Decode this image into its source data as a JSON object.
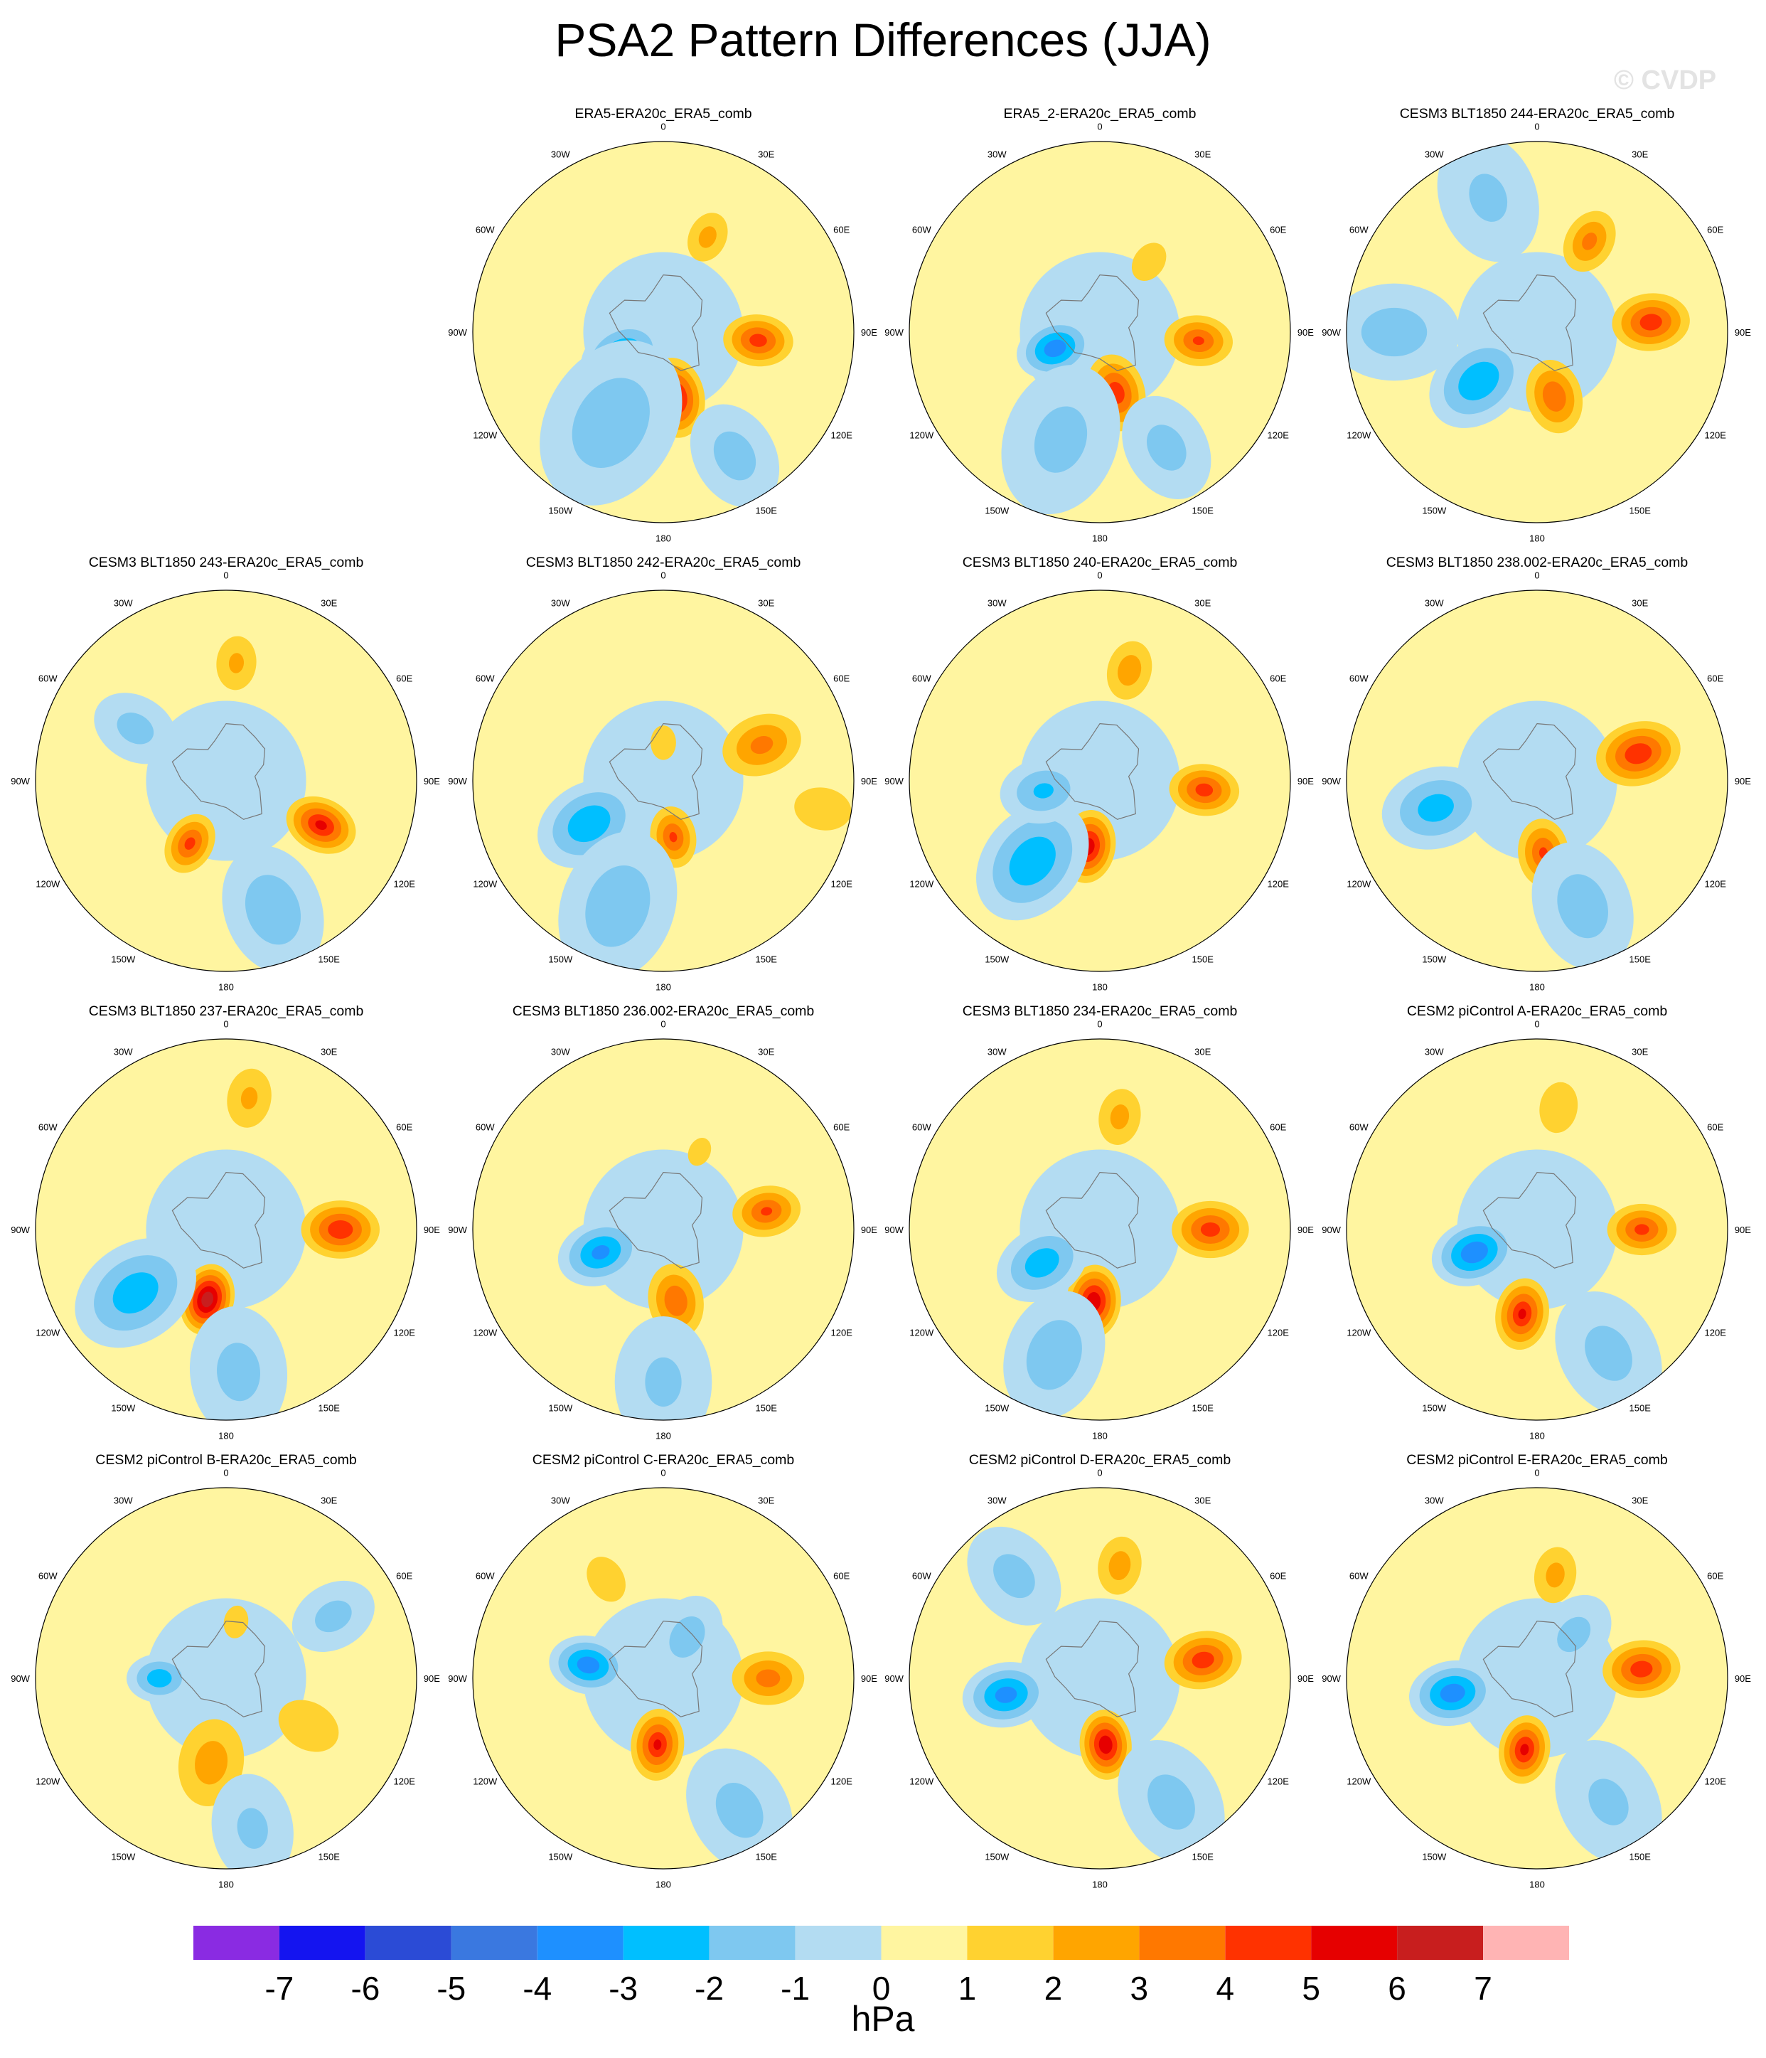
{
  "title": "PSA2 Pattern Differences (JJA)",
  "watermark": "© CVDP",
  "lon_labels": [
    "0",
    "30E",
    "60E",
    "90E",
    "120E",
    "150E",
    "180",
    "150W",
    "120W",
    "90W",
    "60W",
    "30W"
  ],
  "chart_data": {
    "type": "heatmap",
    "projection": "south-polar-stereographic",
    "field": "PSA2 pattern difference",
    "units": "hPa",
    "contour_levels": [
      -7,
      -6,
      -5,
      -4,
      -3,
      -2,
      -1,
      0,
      1,
      2,
      3,
      4,
      5,
      6,
      7
    ],
    "colors": [
      "#8a2be2",
      "#1414f0",
      "#2b4bd6",
      "#3a78e0",
      "#1e90ff",
      "#00bfff",
      "#7ec8f0",
      "#b3dcf2",
      "#fff5a0",
      "#ffd230",
      "#ffa500",
      "#ff7800",
      "#ff3200",
      "#e60000",
      "#c81e1e",
      "#ffb4b4"
    ],
    "panels": [
      {
        "title": "ERA5-ERA20c_ERA5_comb"
      },
      {
        "title": "ERA5_2-ERA20c_ERA5_comb"
      },
      {
        "title": "CESM3 BLT1850 244-ERA20c_ERA5_comb"
      },
      {
        "title": "CESM3 BLT1850 243-ERA20c_ERA5_comb"
      },
      {
        "title": "CESM3 BLT1850 242-ERA20c_ERA5_comb"
      },
      {
        "title": "CESM3 BLT1850 240-ERA20c_ERA5_comb"
      },
      {
        "title": "CESM3 BLT1850 238.002-ERA20c_ERA5_comb"
      },
      {
        "title": "CESM3 BLT1850 237-ERA20c_ERA5_comb"
      },
      {
        "title": "CESM3 BLT1850 236.002-ERA20c_ERA5_comb"
      },
      {
        "title": "CESM3 BLT1850 234-ERA20c_ERA5_comb"
      },
      {
        "title": "CESM2 piControl A-ERA20c_ERA5_comb"
      },
      {
        "title": "CESM2 piControl B-ERA20c_ERA5_comb"
      },
      {
        "title": "CESM2 piControl C-ERA20c_ERA5_comb"
      },
      {
        "title": "CESM2 piControl D-ERA20c_ERA5_comb"
      },
      {
        "title": "CESM2 piControl E-ERA20c_ERA5_comb"
      }
    ]
  }
}
